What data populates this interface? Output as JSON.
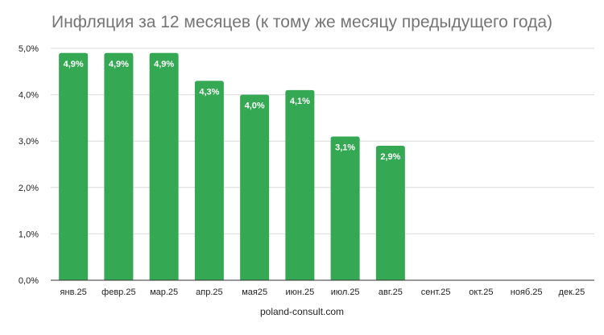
{
  "title": "Инфляция за 12 месяцев (к тому же месяцу предыдущего года)",
  "source": "poland-consult.com",
  "colors": {
    "bar": "#34a853",
    "grid": "#d9d9d9",
    "axis": "#333333"
  },
  "chart_data": {
    "type": "bar",
    "title": "Инфляция за 12 месяцев (к тому же месяцу предыдущего года)",
    "categories": [
      "янв.25",
      "февр.25",
      "мар.25",
      "апр.25",
      "мая25",
      "июн.25",
      "июл.25",
      "авг.25",
      "сент.25",
      "окт.25",
      "нояб.25",
      "дек.25"
    ],
    "values": [
      4.9,
      4.9,
      4.9,
      4.3,
      4.0,
      4.1,
      3.1,
      2.9,
      null,
      null,
      null,
      null
    ],
    "data_labels": [
      "4,9%",
      "4,9%",
      "4,9%",
      "4,3%",
      "4,0%",
      "4,1%",
      "3,1%",
      "2,9%",
      "",
      "",
      "",
      ""
    ],
    "y_ticks": [
      "0,0%",
      "1,0%",
      "2,0%",
      "3,0%",
      "4,0%",
      "5,0%"
    ],
    "ylim": [
      0,
      5
    ],
    "grid": true,
    "legend": "none"
  }
}
